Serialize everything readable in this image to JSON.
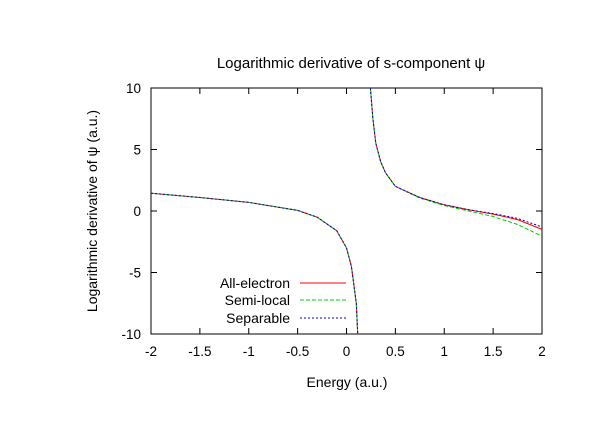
{
  "chart_data": {
    "type": "line",
    "title": "Logarithmic derivative of s-component ψ",
    "xlabel": "Energy (a.u.)",
    "ylabel": "Logarithmic derivative of ψ (a.u.)",
    "xlim": [
      -2,
      2
    ],
    "ylim": [
      -10,
      10
    ],
    "x_ticks": [
      "-2",
      "-1.5",
      "-1",
      "-0.5",
      "0",
      "0.5",
      "1",
      "1.5",
      "2"
    ],
    "y_ticks": [
      "10",
      "5",
      "0",
      "-5",
      "-10"
    ],
    "grid": false,
    "legend_position": "bottom-left",
    "series": [
      {
        "name": "All-electron",
        "color": "#ff0000",
        "points": [
          [
            -2,
            1.45
          ],
          [
            -1.5,
            1.1
          ],
          [
            -1,
            0.7
          ],
          [
            -0.5,
            0.05
          ],
          [
            -0.3,
            -0.5
          ],
          [
            -0.1,
            -1.6
          ],
          [
            0,
            -3
          ],
          [
            0.05,
            -4.5
          ],
          [
            0.1,
            -7.5
          ],
          [
            0.115,
            -10
          ],
          [
            0.245,
            10
          ],
          [
            0.27,
            7.5
          ],
          [
            0.3,
            5.5
          ],
          [
            0.35,
            4
          ],
          [
            0.4,
            3.1
          ],
          [
            0.5,
            2
          ],
          [
            0.75,
            1.1
          ],
          [
            1,
            0.5
          ],
          [
            1.25,
            0.1
          ],
          [
            1.5,
            -0.25
          ],
          [
            1.75,
            -0.7
          ],
          [
            2,
            -1.5
          ]
        ]
      },
      {
        "name": "Semi-local",
        "color": "#00cc00",
        "points": [
          [
            -2,
            1.45
          ],
          [
            -1.5,
            1.1
          ],
          [
            -1,
            0.7
          ],
          [
            -0.5,
            0.05
          ],
          [
            -0.3,
            -0.5
          ],
          [
            -0.1,
            -1.6
          ],
          [
            0,
            -3
          ],
          [
            0.05,
            -4.5
          ],
          [
            0.1,
            -7.5
          ],
          [
            0.115,
            -10
          ],
          [
            0.245,
            10
          ],
          [
            0.27,
            7.5
          ],
          [
            0.3,
            5.5
          ],
          [
            0.35,
            4
          ],
          [
            0.4,
            3.1
          ],
          [
            0.5,
            2
          ],
          [
            0.75,
            1.05
          ],
          [
            1,
            0.45
          ],
          [
            1.25,
            0
          ],
          [
            1.5,
            -0.45
          ],
          [
            1.75,
            -1.1
          ],
          [
            2,
            -2.05
          ]
        ]
      },
      {
        "name": "Separable",
        "color": "#0000cc",
        "points": [
          [
            -2,
            1.45
          ],
          [
            -1.5,
            1.1
          ],
          [
            -1,
            0.7
          ],
          [
            -0.5,
            0.05
          ],
          [
            -0.3,
            -0.5
          ],
          [
            -0.1,
            -1.6
          ],
          [
            0,
            -3
          ],
          [
            0.05,
            -4.5
          ],
          [
            0.1,
            -7.5
          ],
          [
            0.115,
            -10
          ],
          [
            0.245,
            10
          ],
          [
            0.27,
            7.5
          ],
          [
            0.3,
            5.5
          ],
          [
            0.35,
            4
          ],
          [
            0.4,
            3.1
          ],
          [
            0.5,
            2
          ],
          [
            0.75,
            1.1
          ],
          [
            1,
            0.5
          ],
          [
            1.25,
            0.1
          ],
          [
            1.5,
            -0.2
          ],
          [
            1.75,
            -0.6
          ],
          [
            2,
            -1.3
          ]
        ]
      }
    ]
  }
}
